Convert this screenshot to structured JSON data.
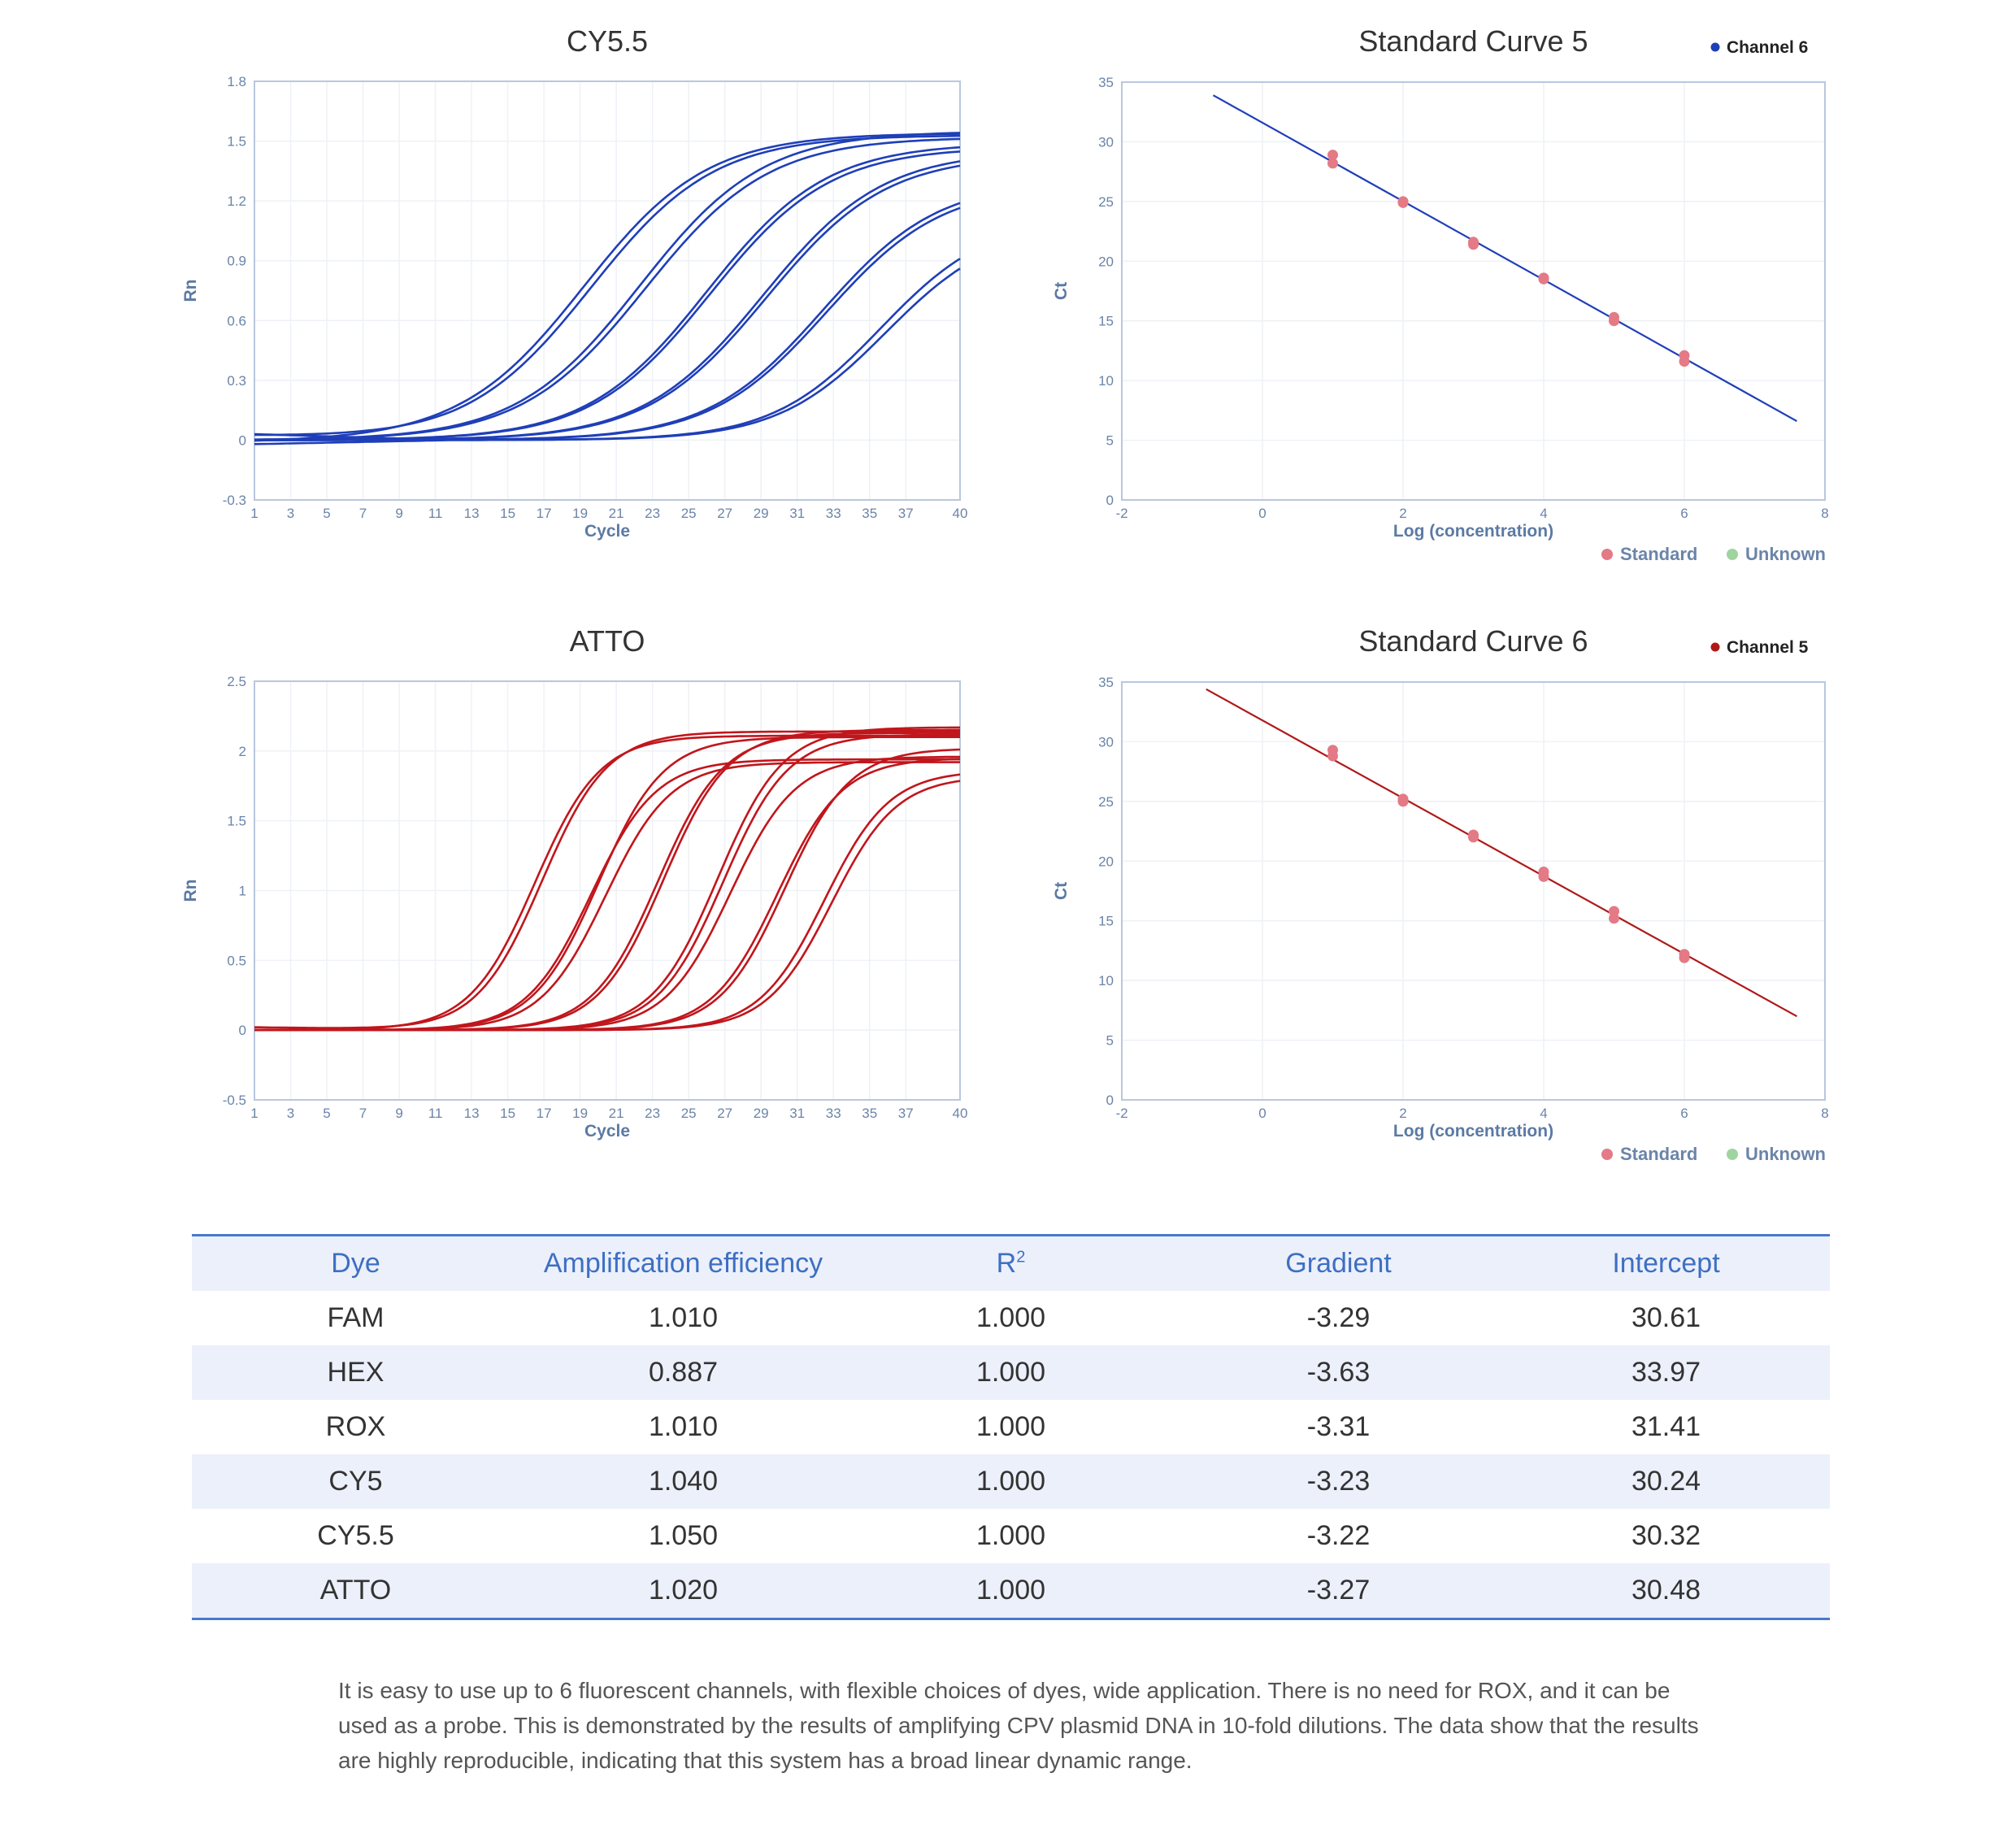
{
  "charts": {
    "amp_cy55": {
      "title": "CY5.5",
      "color": "#1f3fb8",
      "xlabel": "Cycle",
      "ylabel": "Rn",
      "xticks": [
        "1",
        "3",
        "5",
        "7",
        "9",
        "11",
        "13",
        "15",
        "17",
        "19",
        "21",
        "23",
        "25",
        "27",
        "29",
        "31",
        "33",
        "35",
        "37",
        "40"
      ],
      "yticks": [
        "-0.3",
        "0",
        "0.3",
        "0.6",
        "0.9",
        "1.2",
        "1.5",
        "1.8"
      ]
    },
    "std5": {
      "title": "Standard Curve 5",
      "legend_line": "Channel 6",
      "line_color": "#1f3fb8",
      "xlabel": "Log (concentration)",
      "ylabel": "Ct",
      "xticks": [
        "-2",
        "0",
        "2",
        "4",
        "6",
        "8"
      ],
      "yticks": [
        "0",
        "5",
        "10",
        "15",
        "20",
        "25",
        "30",
        "35"
      ],
      "legend_standard": "Standard",
      "legend_unknown": "Unknown",
      "standard_color": "#e37a86",
      "unknown_color": "#9fd49f"
    },
    "amp_atto": {
      "title": "ATTO",
      "color": "#c0161c",
      "xlabel": "Cycle",
      "ylabel": "Rn",
      "xticks": [
        "1",
        "3",
        "5",
        "7",
        "9",
        "11",
        "13",
        "15",
        "17",
        "19",
        "21",
        "23",
        "25",
        "27",
        "29",
        "31",
        "33",
        "35",
        "37",
        "40"
      ],
      "yticks": [
        "-0.5",
        "0",
        "0.5",
        "1",
        "1.5",
        "2",
        "2.5"
      ]
    },
    "std6": {
      "title": "Standard Curve 6",
      "legend_line": "Channel 5",
      "line_color": "#b01818",
      "xlabel": "Log (concentration)",
      "ylabel": "Ct",
      "xticks": [
        "-2",
        "0",
        "2",
        "4",
        "6",
        "8"
      ],
      "yticks": [
        "0",
        "5",
        "10",
        "15",
        "20",
        "25",
        "30",
        "35"
      ],
      "legend_standard": "Standard",
      "legend_unknown": "Unknown",
      "standard_color": "#e37a86",
      "unknown_color": "#9fd49f"
    }
  },
  "chart_data": [
    {
      "id": "amp_cy55",
      "type": "line",
      "title": "CY5.5",
      "xlabel": "Cycle",
      "ylabel": "Rn",
      "xlim": [
        1,
        40
      ],
      "ylim": [
        -0.3,
        1.8
      ],
      "series": [
        {
          "name": "curve 1",
          "midpoint": 19.2,
          "plateau": 1.54,
          "slope": 3.4,
          "baseline": -0.01
        },
        {
          "name": "curve 2",
          "midpoint": 19.6,
          "plateau": 1.53,
          "slope": 3.4,
          "baseline": 0.02
        },
        {
          "name": "curve 3",
          "midpoint": 22.3,
          "plateau": 1.55,
          "slope": 3.4,
          "baseline": 0.0
        },
        {
          "name": "curve 4",
          "midpoint": 22.6,
          "plateau": 1.52,
          "slope": 3.4,
          "baseline": 0.0
        },
        {
          "name": "curve 5",
          "midpoint": 26.0,
          "plateau": 1.49,
          "slope": 3.3,
          "baseline": 0.0
        },
        {
          "name": "curve 6",
          "midpoint": 26.2,
          "plateau": 1.47,
          "slope": 3.3,
          "baseline": 0.0
        },
        {
          "name": "curve 7",
          "midpoint": 29.1,
          "plateau": 1.45,
          "slope": 3.3,
          "baseline": 0.0
        },
        {
          "name": "curve 8",
          "midpoint": 29.3,
          "plateau": 1.43,
          "slope": 3.3,
          "baseline": 0.0
        },
        {
          "name": "curve 9",
          "midpoint": 32.4,
          "plateau": 1.3,
          "slope": 3.2,
          "baseline": 0.0
        },
        {
          "name": "curve 10",
          "midpoint": 32.6,
          "plateau": 1.28,
          "slope": 3.2,
          "baseline": 0.0
        },
        {
          "name": "curve 11",
          "midpoint": 35.6,
          "plateau": 1.12,
          "slope": 3.0,
          "baseline": -0.02
        },
        {
          "name": "curve 12",
          "midpoint": 35.9,
          "plateau": 1.08,
          "slope": 3.0,
          "baseline": 0.03
        }
      ]
    },
    {
      "id": "std5",
      "type": "scatter",
      "title": "Standard Curve 5",
      "xlabel": "Log (concentration)",
      "ylabel": "Ct",
      "xlim": [
        -2,
        8
      ],
      "ylim": [
        0,
        35
      ],
      "fit_line": {
        "name": "Channel 6",
        "x": [
          -0.7,
          7.6
        ],
        "y": [
          33.9,
          6.6
        ]
      },
      "series": [
        {
          "name": "Standard",
          "x": [
            1,
            1,
            2,
            2,
            3,
            3,
            4,
            4,
            5,
            5,
            6,
            6
          ],
          "y": [
            28.9,
            28.2,
            24.9,
            25.0,
            21.4,
            21.6,
            18.6,
            18.5,
            15.3,
            15.0,
            12.1,
            11.6
          ]
        },
        {
          "name": "Unknown",
          "x": [],
          "y": []
        }
      ]
    },
    {
      "id": "amp_atto",
      "type": "line",
      "title": "ATTO",
      "xlabel": "Cycle",
      "ylabel": "Rn",
      "xlim": [
        1,
        40
      ],
      "ylim": [
        -0.5,
        2.5
      ],
      "series": [
        {
          "name": "curve 1",
          "midpoint": 16.5,
          "plateau": 2.11,
          "slope": 1.8,
          "baseline": 0.0
        },
        {
          "name": "curve 2",
          "midpoint": 16.9,
          "plateau": 2.14,
          "slope": 1.8,
          "baseline": 0.02
        },
        {
          "name": "curve 3",
          "midpoint": 19.6,
          "plateau": 1.94,
          "slope": 1.8,
          "baseline": 0.0
        },
        {
          "name": "curve 4",
          "midpoint": 20.0,
          "plateau": 2.1,
          "slope": 1.8,
          "baseline": 0.0
        },
        {
          "name": "curve 5",
          "midpoint": 20.4,
          "plateau": 1.92,
          "slope": 1.8,
          "baseline": 0.0
        },
        {
          "name": "curve 6",
          "midpoint": 23.3,
          "plateau": 2.13,
          "slope": 1.8,
          "baseline": 0.0
        },
        {
          "name": "curve 7",
          "midpoint": 23.6,
          "plateau": 2.15,
          "slope": 1.8,
          "baseline": 0.0
        },
        {
          "name": "curve 8",
          "midpoint": 26.6,
          "plateau": 2.17,
          "slope": 1.8,
          "baseline": 0.0
        },
        {
          "name": "curve 9",
          "midpoint": 26.9,
          "plateau": 2.12,
          "slope": 1.8,
          "baseline": 0.0
        },
        {
          "name": "curve 10",
          "midpoint": 27.3,
          "plateau": 1.96,
          "slope": 1.8,
          "baseline": 0.0
        },
        {
          "name": "curve 11",
          "midpoint": 29.9,
          "plateau": 1.95,
          "slope": 1.8,
          "baseline": 0.0
        },
        {
          "name": "curve 12",
          "midpoint": 30.3,
          "plateau": 2.02,
          "slope": 1.8,
          "baseline": 0.0
        },
        {
          "name": "curve 13",
          "midpoint": 32.5,
          "plateau": 1.86,
          "slope": 1.8,
          "baseline": 0.0
        },
        {
          "name": "curve 14",
          "midpoint": 32.9,
          "plateau": 1.82,
          "slope": 1.8,
          "baseline": 0.0
        }
      ]
    },
    {
      "id": "std6",
      "type": "scatter",
      "title": "Standard Curve 6",
      "xlabel": "Log (concentration)",
      "ylabel": "Ct",
      "xlim": [
        -2,
        8
      ],
      "ylim": [
        0,
        35
      ],
      "fit_line": {
        "name": "Channel 5",
        "x": [
          -0.8,
          7.6
        ],
        "y": [
          34.4,
          7.0
        ]
      },
      "series": [
        {
          "name": "Standard",
          "x": [
            1,
            1,
            2,
            2,
            3,
            3,
            4,
            4,
            5,
            5,
            6,
            6
          ],
          "y": [
            29.3,
            28.8,
            25.2,
            25.0,
            22.2,
            22.0,
            19.1,
            18.7,
            15.8,
            15.2,
            12.2,
            11.9
          ]
        },
        {
          "name": "Unknown",
          "x": [],
          "y": []
        }
      ]
    }
  ],
  "table": {
    "headers": [
      "Dye",
      "Amplification efficiency",
      "R",
      "Gradient",
      "Intercept"
    ],
    "r2_superscript": "2",
    "rows": [
      [
        "FAM",
        "1.010",
        "1.000",
        "-3.29",
        "30.61"
      ],
      [
        "HEX",
        "0.887",
        "1.000",
        "-3.63",
        "33.97"
      ],
      [
        "ROX",
        "1.010",
        "1.000",
        "-3.31",
        "31.41"
      ],
      [
        "CY5",
        "1.040",
        "1.000",
        "-3.23",
        "30.24"
      ],
      [
        "CY5.5",
        "1.050",
        "1.000",
        "-3.22",
        "30.32"
      ],
      [
        "ATTO",
        "1.020",
        "1.000",
        "-3.27",
        "30.48"
      ]
    ]
  },
  "description": "It is easy to use up to 6 fluorescent channels, with flexible choices of dyes, wide application. There is no need for ROX, and it can be used as a probe. This is demonstrated by the results of amplifying CPV plasmid DNA in 10-fold dilutions. The data show that the results are highly reproducible, indicating that this system has a broad linear dynamic range."
}
